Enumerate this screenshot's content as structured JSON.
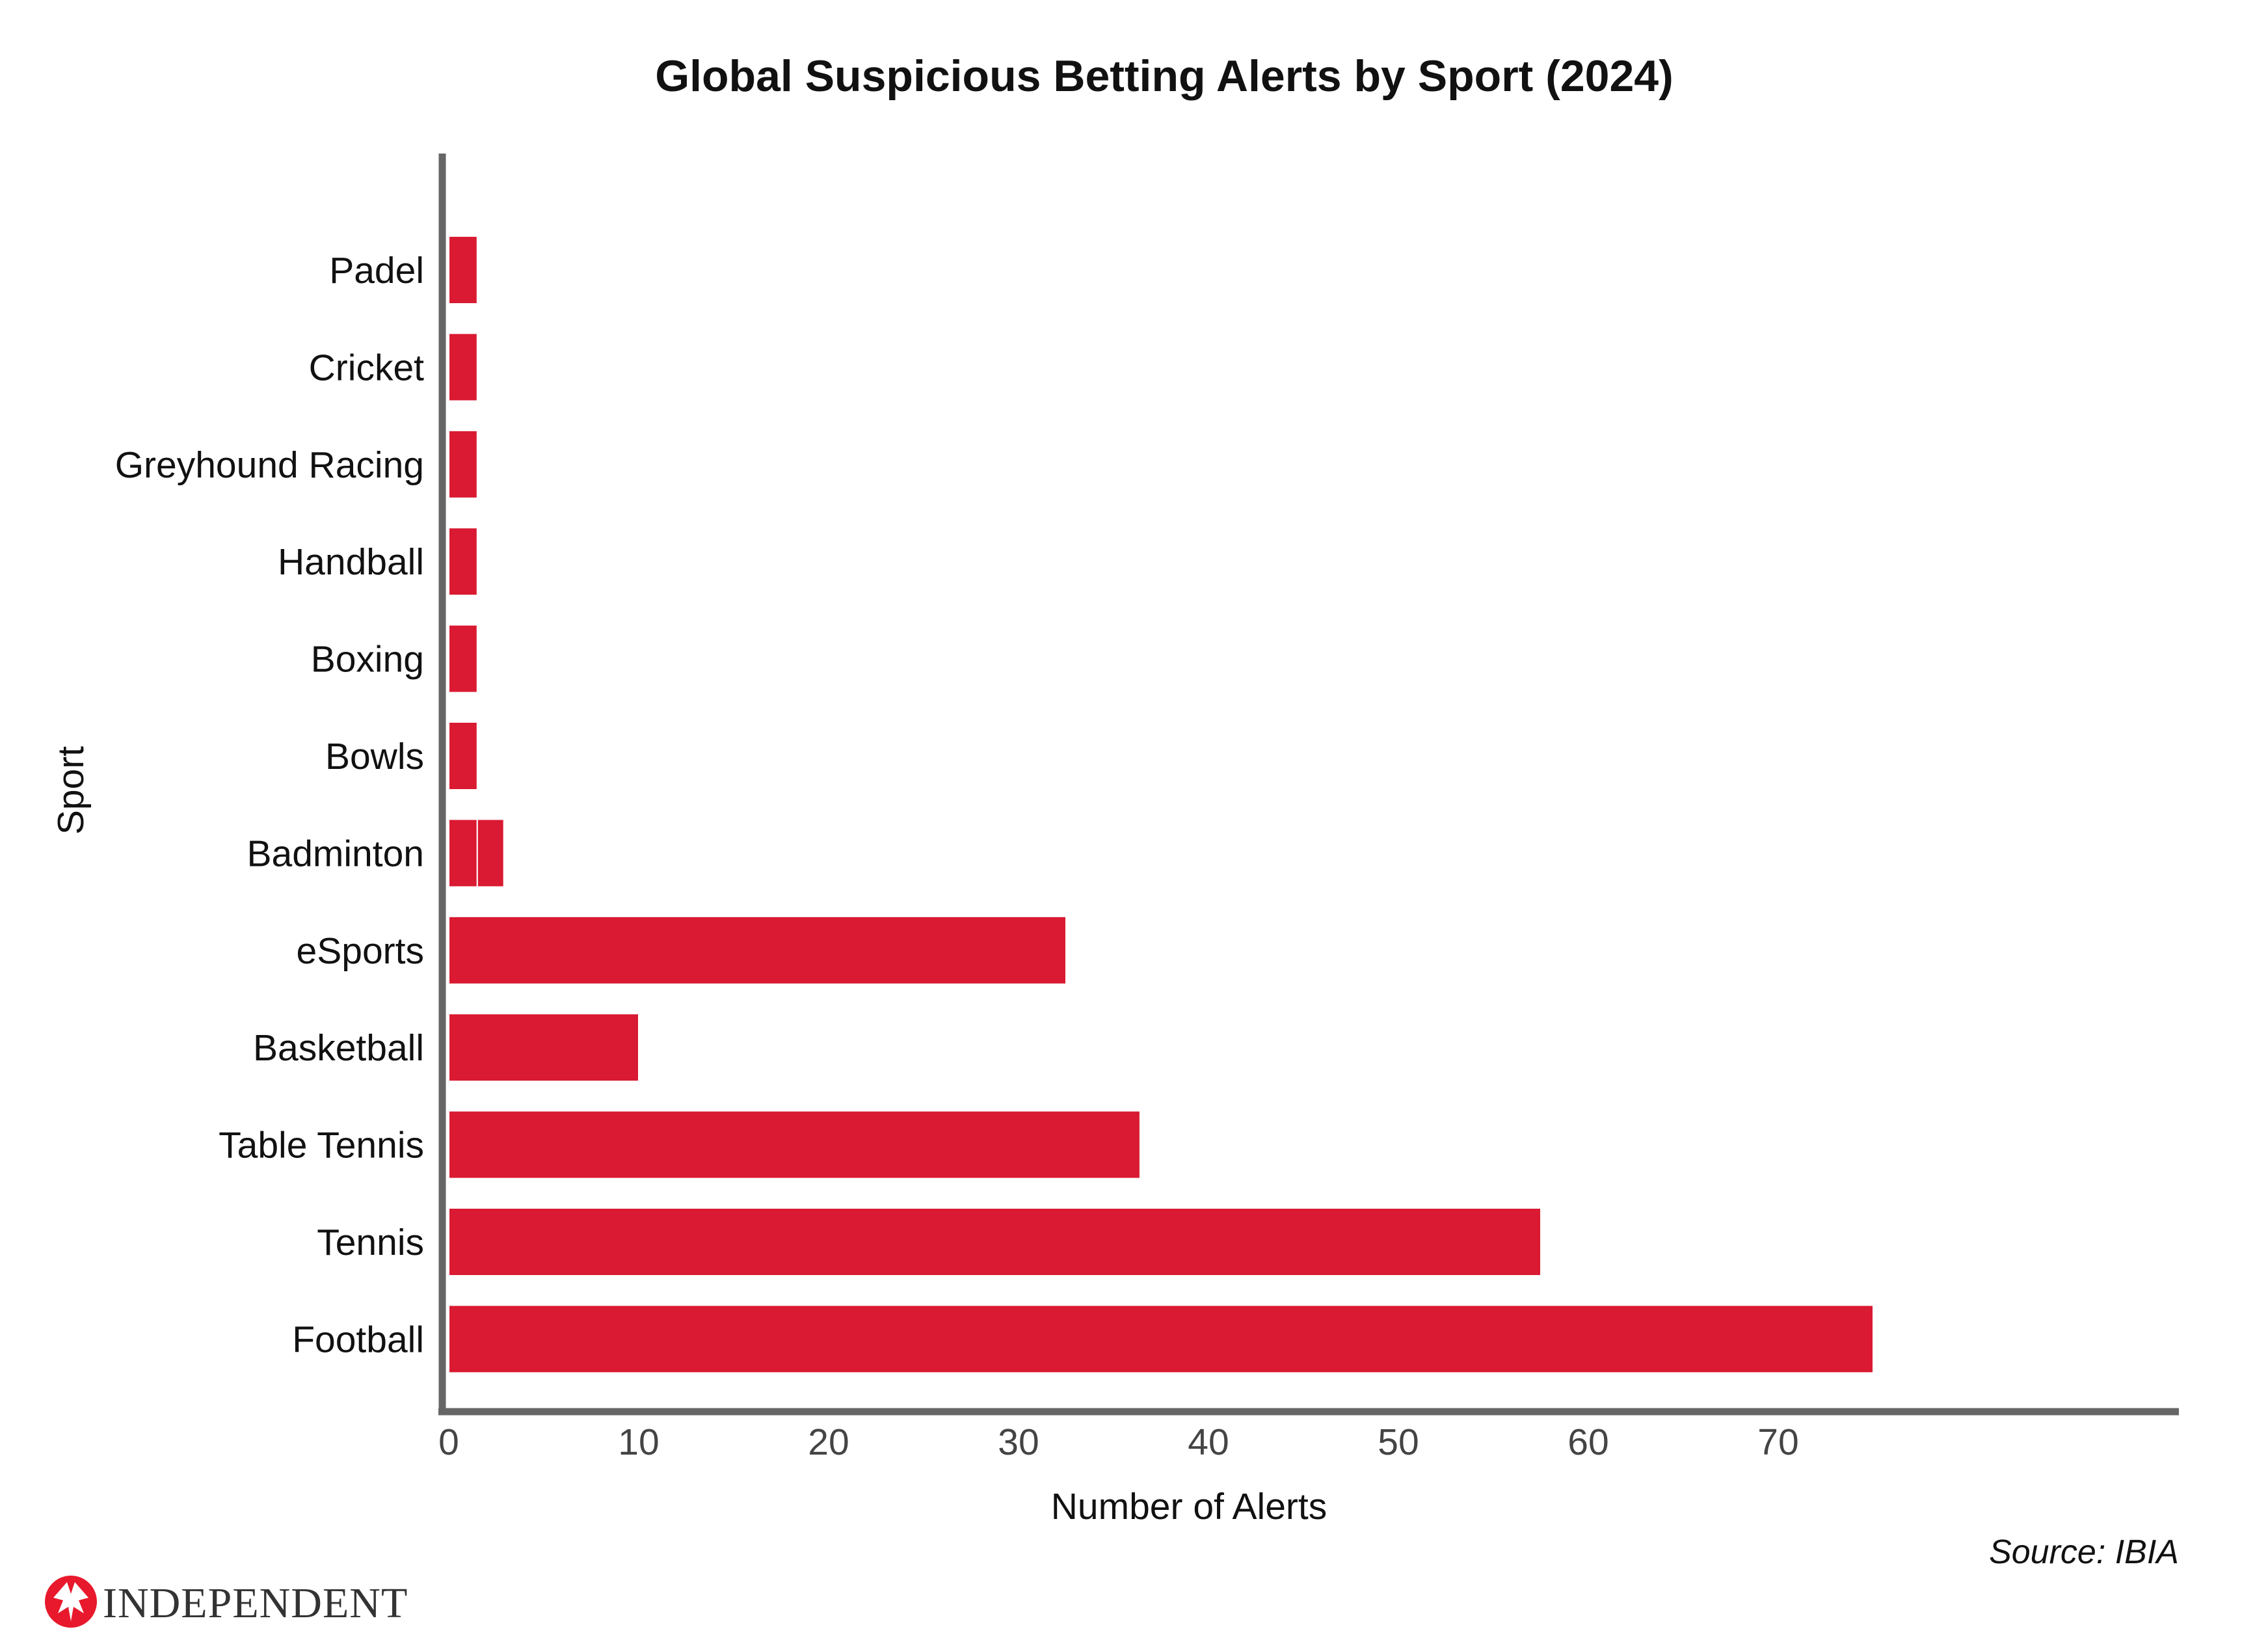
{
  "chart_data": {
    "type": "bar",
    "orientation": "horizontal",
    "title": "Global Suspicious Betting Alerts by Sport (2024)",
    "xlabel": "Number of Alerts",
    "ylabel": "Sport",
    "categories": [
      "Padel",
      "Cricket",
      "Greyhound Racing",
      "Handball",
      "Boxing",
      "Bowls",
      "Badminton",
      "eSports",
      "Basketball",
      "Table Tennis",
      "Tennis",
      "Football"
    ],
    "segments": [
      [
        1.5
      ],
      [
        1.5
      ],
      [
        1.5
      ],
      [
        1.5
      ],
      [
        1.5
      ],
      [
        1.5
      ],
      [
        1.5,
        1.4
      ],
      [
        32.5
      ],
      [
        10
      ],
      [
        36.4
      ],
      [
        57.5
      ],
      [
        75
      ]
    ],
    "values": [
      1.5,
      1.5,
      1.5,
      1.5,
      1.5,
      1.5,
      2.9,
      32.5,
      10,
      36.4,
      57.5,
      75
    ],
    "xticks": [
      0,
      10,
      20,
      30,
      40,
      50,
      60,
      70
    ],
    "xlim": [
      0,
      91
    ],
    "grid": false,
    "bar_color": "#d91a32",
    "axis_color": "#666666"
  },
  "source": "Source: IBIA",
  "brand": {
    "name": "INDEPENDENT",
    "logo_icon": "eagle-icon",
    "logo_color": "#e8192c"
  }
}
